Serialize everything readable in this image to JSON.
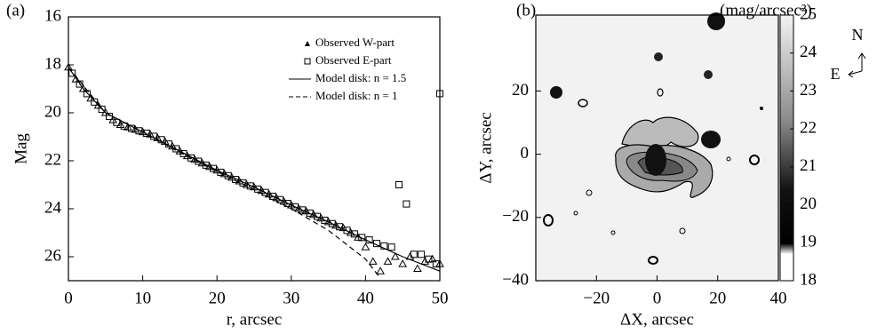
{
  "chart_data": [
    {
      "type": "scatter",
      "panel_label": "(a)",
      "x_label": "r, arcsec",
      "y_label": "Mag",
      "xlim": [
        0,
        50
      ],
      "ylim": [
        27,
        16
      ],
      "xticks": [
        0,
        10,
        20,
        30,
        40,
        50
      ],
      "yticks": [
        16,
        18,
        20,
        22,
        24,
        26
      ],
      "legend": "top-right",
      "series": [
        {
          "name": "Observed W-part",
          "marker": "triangle",
          "color": "#000000",
          "x": [
            0,
            1,
            2,
            3,
            4,
            5,
            6,
            7,
            8,
            9,
            10,
            11,
            12,
            13,
            14,
            15,
            16,
            17,
            18,
            19,
            20,
            21,
            22,
            23,
            24,
            25,
            26,
            27,
            28,
            29,
            30,
            31,
            32,
            33,
            34,
            35,
            36,
            37,
            38,
            39,
            40,
            41,
            42,
            43,
            44,
            45,
            46,
            47,
            48,
            49,
            50
          ],
          "values": [
            18.1,
            18.6,
            19.0,
            19.4,
            19.7,
            20.0,
            20.3,
            20.5,
            20.6,
            20.7,
            20.8,
            20.9,
            21.05,
            21.2,
            21.4,
            21.6,
            21.8,
            21.95,
            22.1,
            22.25,
            22.4,
            22.55,
            22.7,
            22.85,
            23.0,
            23.1,
            23.25,
            23.4,
            23.55,
            23.7,
            23.85,
            24.0,
            24.1,
            24.25,
            24.4,
            24.55,
            24.7,
            24.8,
            25.0,
            25.2,
            25.6,
            26.2,
            26.6,
            26.2,
            26.0,
            26.3,
            26.0,
            26.5,
            26.2,
            26.1,
            26.3
          ]
        },
        {
          "name": "Observed E-part",
          "marker": "square",
          "color": "#000000",
          "x": [
            0.5,
            1.5,
            2.5,
            3.5,
            4.5,
            5.5,
            6.5,
            7.5,
            8.5,
            9.5,
            10.5,
            11.5,
            12.5,
            13.5,
            14.5,
            15.5,
            16.5,
            17.5,
            18.5,
            19.5,
            20.5,
            21.5,
            22.5,
            23.5,
            24.5,
            25.5,
            26.5,
            27.5,
            28.5,
            29.5,
            30.5,
            31.5,
            32.5,
            33.5,
            34.5,
            35.5,
            36.5,
            37.5,
            38.5,
            39.5,
            40.5,
            41.5,
            42.5,
            43.5,
            44.5,
            45.5,
            46.5,
            47.5,
            48.5,
            49.5,
            50
          ],
          "values": [
            18.35,
            18.8,
            19.2,
            19.55,
            19.85,
            20.15,
            20.4,
            20.55,
            20.65,
            20.75,
            20.85,
            20.98,
            21.12,
            21.3,
            21.5,
            21.7,
            21.88,
            22.02,
            22.18,
            22.32,
            22.48,
            22.62,
            22.78,
            22.92,
            23.05,
            23.18,
            23.32,
            23.48,
            23.62,
            23.78,
            23.92,
            24.05,
            24.18,
            24.32,
            24.48,
            24.62,
            24.75,
            24.9,
            25.05,
            25.2,
            25.3,
            25.45,
            25.55,
            25.6,
            23.0,
            23.8,
            25.9,
            25.9,
            26.1,
            26.3,
            19.2
          ]
        },
        {
          "name": "Model disk: n = 1.5",
          "marker": "line",
          "style": "solid",
          "color": "#000000",
          "x": [
            0,
            2,
            5,
            10,
            15,
            20,
            25,
            30,
            35,
            40,
            45,
            50
          ],
          "values": [
            18.1,
            19.0,
            20.0,
            20.8,
            21.6,
            22.4,
            23.1,
            23.85,
            24.55,
            25.3,
            26.0,
            26.6
          ]
        },
        {
          "name": "Model disk: n = 1",
          "marker": "line",
          "style": "dashed",
          "color": "#000000",
          "x": [
            0,
            5,
            10,
            15,
            20,
            25,
            30,
            35,
            40,
            42
          ],
          "values": [
            18.1,
            20.0,
            20.8,
            21.65,
            22.45,
            23.2,
            24.0,
            24.9,
            26.1,
            26.9
          ]
        }
      ]
    },
    {
      "type": "image",
      "panel_label": "(b)",
      "x_label": "ΔX, arcsec",
      "y_label": "ΔY, arcsec",
      "colorbar_label": "(mag/arcsec²)",
      "compass": [
        "N",
        "E"
      ],
      "xlim": [
        -40,
        40
      ],
      "ylim": [
        -40,
        44
      ],
      "xticks": [
        {
          "value": -20,
          "label": "−20"
        },
        0,
        20,
        40
      ],
      "yticks": [
        {
          "value": -40,
          "label": "−40"
        },
        {
          "value": -20,
          "label": "−20"
        },
        0,
        20
      ],
      "cblim": [
        18,
        25
      ],
      "cbticks": [
        18,
        19,
        20,
        21,
        22,
        23,
        24,
        25
      ]
    }
  ]
}
